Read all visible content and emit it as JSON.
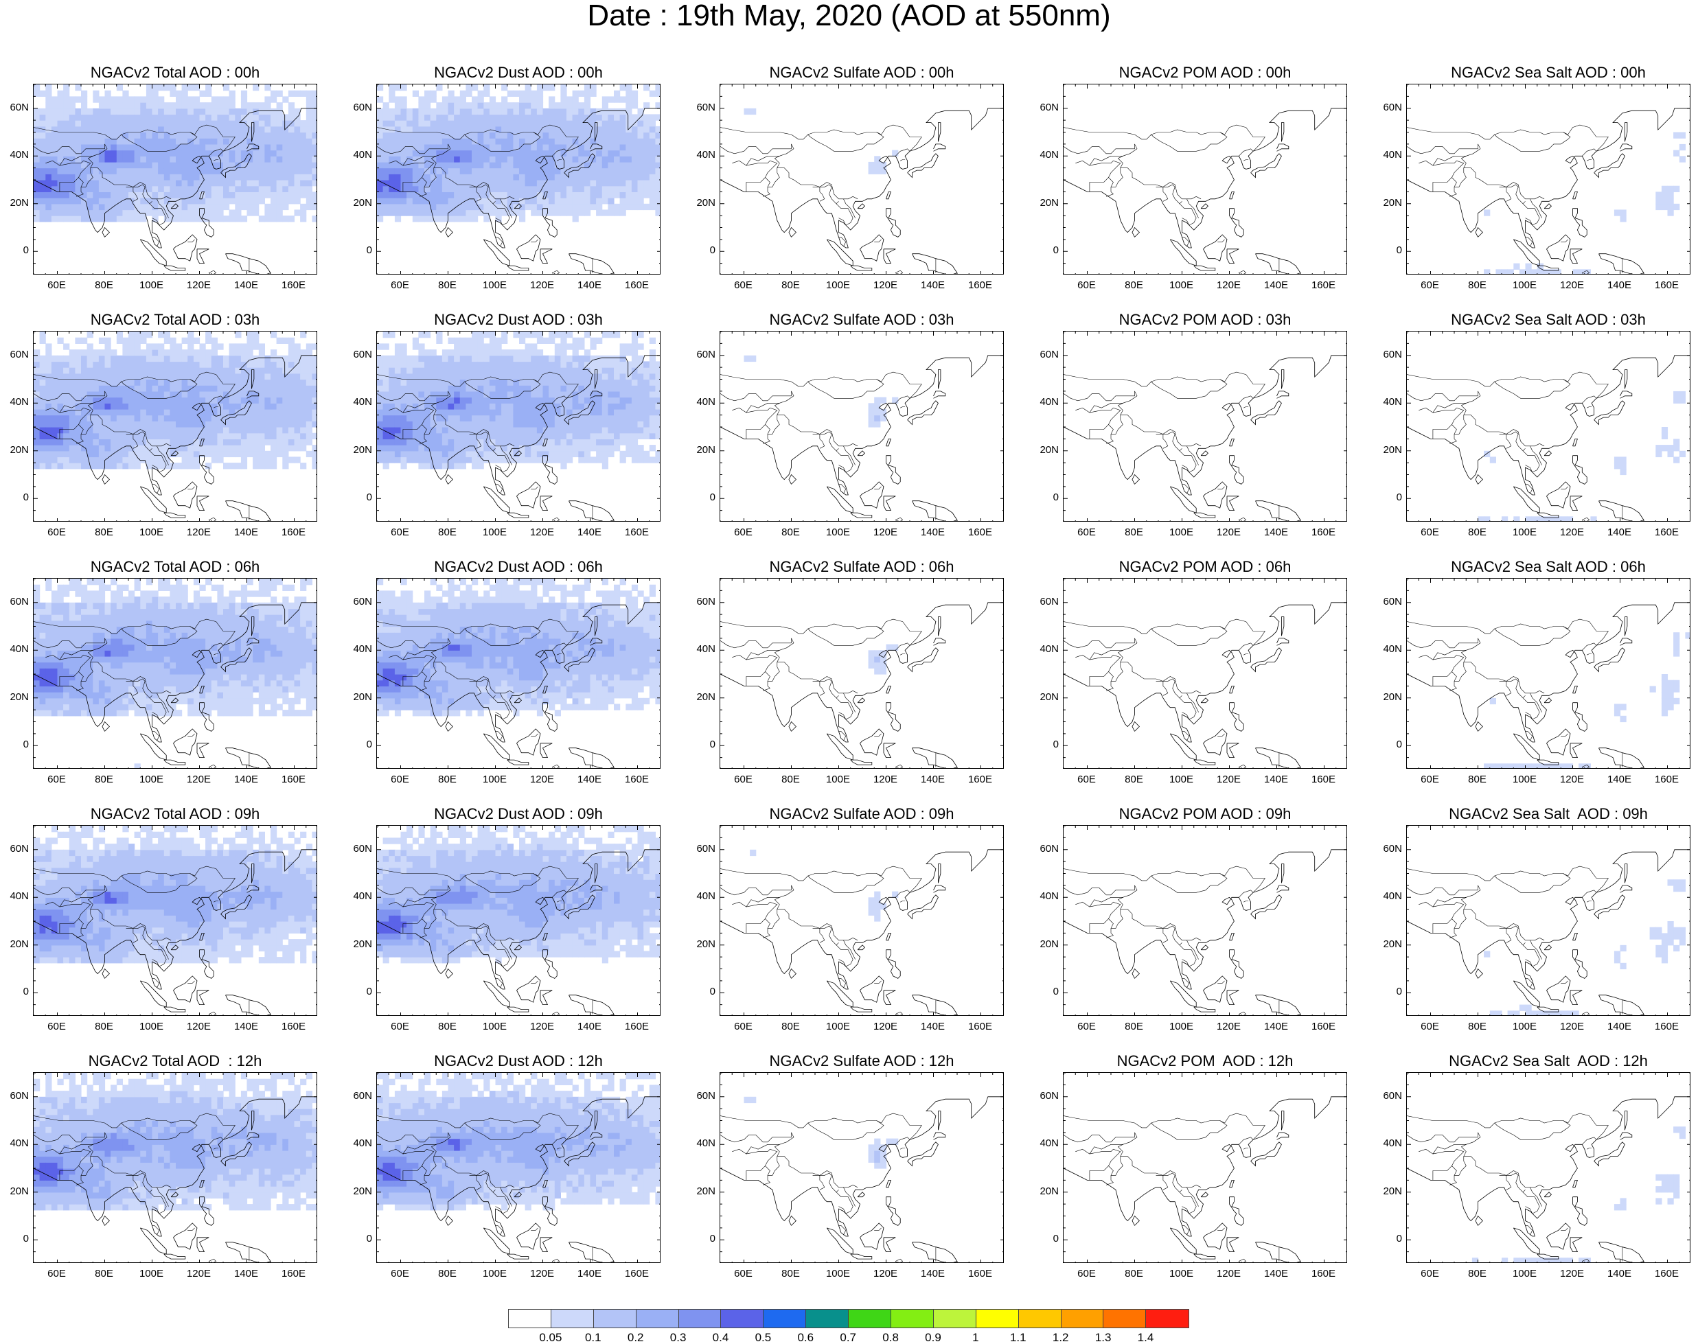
{
  "title": "Date : 19th May, 2020 (AOD at 550nm)",
  "map_axes": {
    "lat_labels": [
      "60N",
      "40N",
      "20N",
      "0"
    ],
    "lat_values": [
      60,
      40,
      20,
      0
    ],
    "lon_labels": [
      "60E",
      "80E",
      "100E",
      "120E",
      "140E",
      "160E"
    ],
    "lon_values": [
      60,
      80,
      100,
      120,
      140,
      160
    ],
    "lat_range": [
      -10,
      70
    ],
    "lon_range": [
      50,
      170
    ]
  },
  "panels": [
    {
      "title": "NGACv2 Total AOD : 00h",
      "type": "total"
    },
    {
      "title": "NGACv2 Dust AOD : 00h",
      "type": "dust"
    },
    {
      "title": "NGACv2 Sulfate AOD : 00h",
      "type": "sulfate"
    },
    {
      "title": "NGACv2 POM AOD : 00h",
      "type": "pom"
    },
    {
      "title": "NGACv2 Sea Salt AOD : 00h",
      "type": "seasalt"
    },
    {
      "title": "NGACv2 Total AOD : 03h",
      "type": "total"
    },
    {
      "title": "NGACv2 Dust AOD : 03h",
      "type": "dust"
    },
    {
      "title": "NGACv2 Sulfate AOD : 03h",
      "type": "sulfate"
    },
    {
      "title": "NGACv2 POM AOD : 03h",
      "type": "pom"
    },
    {
      "title": "NGACv2 Sea Salt AOD : 03h",
      "type": "seasalt"
    },
    {
      "title": "NGACv2 Total AOD : 06h",
      "type": "total"
    },
    {
      "title": "NGACv2 Dust AOD : 06h",
      "type": "dust"
    },
    {
      "title": "NGACv2 Sulfate AOD : 06h",
      "type": "sulfate"
    },
    {
      "title": "NGACv2 POM AOD : 06h",
      "type": "pom"
    },
    {
      "title": "NGACv2 Sea Salt AOD : 06h",
      "type": "seasalt"
    },
    {
      "title": "NGACv2 Total AOD : 09h",
      "type": "total"
    },
    {
      "title": "NGACv2 Dust AOD : 09h",
      "type": "dust"
    },
    {
      "title": "NGACv2 Sulfate AOD : 09h",
      "type": "sulfate"
    },
    {
      "title": "NGACv2 POM AOD : 09h",
      "type": "pom"
    },
    {
      "title": "NGACv2 Sea Salt  AOD : 09h",
      "type": "seasalt"
    },
    {
      "title": "NGACv2 Total AOD  : 12h",
      "type": "total"
    },
    {
      "title": "NGACv2 Dust AOD : 12h",
      "type": "dust"
    },
    {
      "title": "NGACv2 Sulfate AOD : 12h",
      "type": "sulfate"
    },
    {
      "title": "NGACv2 POM  AOD : 12h",
      "type": "pom"
    },
    {
      "title": "NGACv2 Sea Salt  AOD : 12h",
      "type": "seasalt"
    }
  ],
  "colorbar": {
    "labels": [
      "0.05",
      "0.1",
      "0.2",
      "0.3",
      "0.4",
      "0.5",
      "0.6",
      "0.7",
      "0.8",
      "0.9",
      "1",
      "1.1",
      "1.2",
      "1.3",
      "1.4"
    ],
    "colors": [
      "#ffffff",
      "#cdd9fa",
      "#b3c4f7",
      "#9ab0f5",
      "#7f93f0",
      "#5b63e8",
      "#1e6af0",
      "#08908c",
      "#3fd616",
      "#83ee13",
      "#bdf43b",
      "#ffff00",
      "#ffc800",
      "#ffa000",
      "#ff7300",
      "#ff1e10"
    ]
  }
}
